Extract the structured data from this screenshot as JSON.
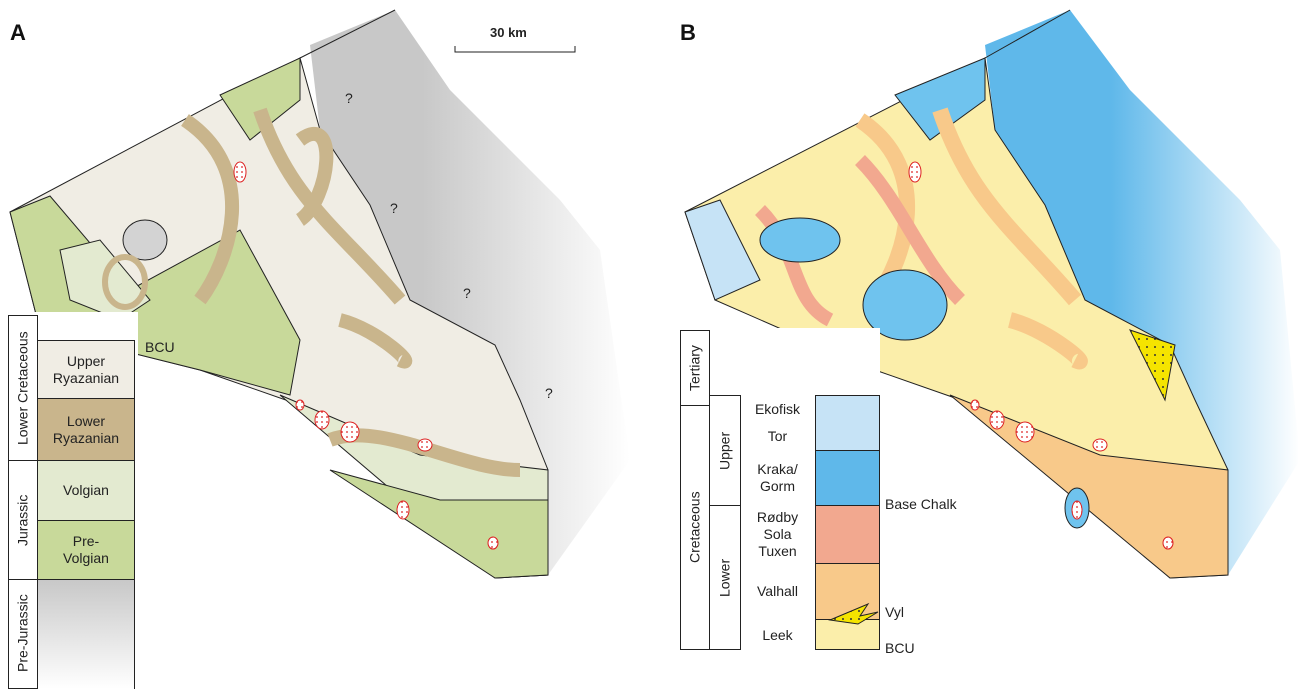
{
  "panel_a": {
    "label": "A",
    "scale_bar": "30 km",
    "question_marks": [
      "?",
      "?",
      "?",
      "?"
    ],
    "legend": {
      "periods": [
        "Lower Cretaceous",
        "Jurassic",
        "Pre-Jurassic"
      ],
      "units": [
        "Upper Ryazanian",
        "Lower Ryazanian",
        "Volgian",
        "Pre-Volgian"
      ],
      "horizon": "BCU"
    }
  },
  "panel_b": {
    "label": "B",
    "legend": {
      "periods": [
        "Tertiary",
        "Cretaceous"
      ],
      "epochs": [
        "Upper",
        "Lower"
      ],
      "units": [
        "Ekofisk",
        "Tor",
        "Kraka/ Gorm",
        "Rødby Sola Tuxen",
        "Valhall",
        "Leek"
      ],
      "horizons": [
        "Base Chalk",
        "Vyl",
        "BCU"
      ]
    }
  }
}
